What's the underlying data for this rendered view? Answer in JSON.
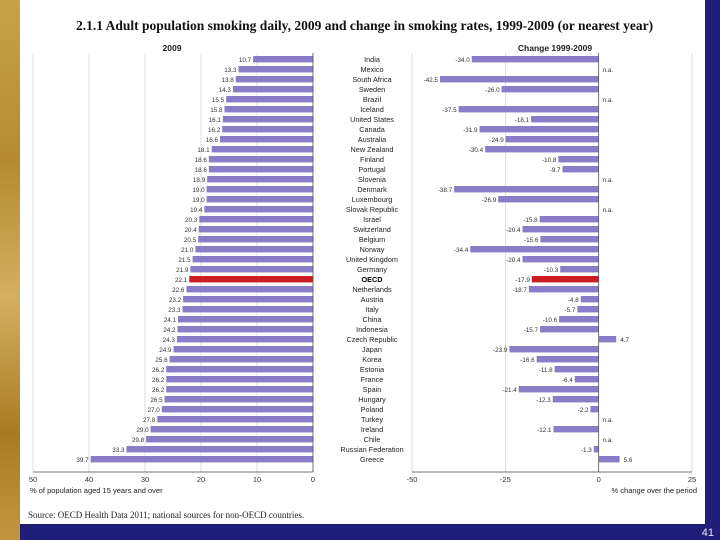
{
  "title": "2.1.1  Adult population smoking daily, 2009 and change in smoking rates, 1999-2009 (or nearest year)",
  "source": "Source: OECD Health Data 2011; national sources for non-OECD countries.",
  "page_number": "41",
  "colors": {
    "bar": "#8a7cc8",
    "highlight": "#cc1e1e",
    "slide_bg": "#ffffff",
    "frame": "#1f1f7a"
  },
  "chart_data": [
    {
      "type": "bar",
      "orientation": "horizontal",
      "title": "2009",
      "xlabel": "% of population aged 15 years and over",
      "xlim": [
        50,
        0
      ],
      "xticks": [
        50,
        40,
        30,
        20,
        10,
        0
      ],
      "xtick_labels": [
        "50",
        "40",
        "30",
        "20",
        "10",
        "0"
      ],
      "highlight": "OECD",
      "categories": [
        "India",
        "Mexico",
        "South Africa",
        "Sweden",
        "Brazil",
        "Iceland",
        "United States",
        "Canada",
        "Australia",
        "New Zealand",
        "Finland",
        "Portugal",
        "Slovenia",
        "Denmark",
        "Luxembourg",
        "Slovak Republic",
        "Israel",
        "Switzerland",
        "Belgium",
        "Norway",
        "United Kingdom",
        "Germany",
        "OECD",
        "Netherlands",
        "Austria",
        "Italy",
        "China",
        "Indonesia",
        "Czech Republic",
        "Japan",
        "Korea",
        "Estonia",
        "France",
        "Spain",
        "Hungary",
        "Poland",
        "Turkey",
        "Ireland",
        "Chile",
        "Russian Federation",
        "Greece"
      ],
      "values": [
        10.7,
        13.3,
        13.8,
        14.3,
        15.5,
        15.8,
        16.1,
        16.2,
        16.6,
        18.1,
        18.6,
        18.6,
        18.9,
        19.0,
        19.0,
        19.4,
        20.3,
        20.4,
        20.5,
        21.0,
        21.5,
        21.9,
        22.1,
        22.6,
        23.2,
        23.3,
        24.1,
        24.2,
        24.3,
        24.9,
        25.6,
        26.2,
        26.2,
        26.2,
        26.5,
        27.0,
        27.8,
        29.0,
        29.8,
        33.3,
        39.7
      ],
      "labels": [
        "10.7",
        "13.3",
        "13.8",
        "14.3",
        "15.5",
        "15.8",
        "16.1",
        "16.2",
        "16.6",
        "18.1",
        "18.6",
        "18.6",
        "18.9",
        "19.0",
        "19.0",
        "19.4",
        "20.3",
        "20.4",
        "20.5",
        "21.0",
        "21.5",
        "21.9",
        "22.1",
        "22.6",
        "23.2",
        "23.3",
        "24.1",
        "24.2",
        "24.3",
        "24.9",
        "25.6",
        "26.2",
        "26.2",
        "26.2",
        "26.5",
        "27.0",
        "27.8",
        "29.0",
        "29.8",
        "33.3",
        "39.7"
      ]
    },
    {
      "type": "bar",
      "orientation": "horizontal",
      "title": "Change 1999-2009",
      "xlabel": "% change over the period",
      "xlim": [
        -50,
        25
      ],
      "xticks": [
        -50,
        -25,
        0,
        25
      ],
      "xtick_labels": [
        "-50",
        "-25",
        "0",
        "25"
      ],
      "highlight": "OECD",
      "values": [
        -34.0,
        null,
        -42.5,
        -26.0,
        null,
        -37.5,
        -18.1,
        -31.9,
        -24.9,
        -30.4,
        -10.8,
        -9.7,
        null,
        -38.7,
        -26.9,
        null,
        -15.8,
        -20.4,
        -15.6,
        -34.4,
        -20.4,
        -10.3,
        -17.9,
        -18.7,
        -4.8,
        -5.7,
        -10.6,
        -15.7,
        4.7,
        -23.9,
        -16.6,
        -11.8,
        -6.4,
        -21.4,
        -12.3,
        -2.2,
        null,
        -12.1,
        null,
        -1.3,
        5.6
      ],
      "labels": [
        "-34.0",
        "n.a.",
        "-42.5",
        "-26.0",
        "n.a.",
        "-37.5",
        "-18.1",
        "-31.9",
        "-24.9",
        "-30.4",
        "-10.8",
        "-9.7",
        "n.a.",
        "-38.7",
        "-26.9",
        "n.a.",
        "-15.8",
        "-20.4",
        "-15.6",
        "-34.4",
        "-20.4",
        "-10.3",
        "-17.9",
        "-18.7",
        "-4.8",
        "-5.7",
        "-10.6",
        "-15.7",
        "4.7",
        "-23.9",
        "-16.6",
        "-11.8",
        "-6.4",
        "-21.4",
        "-12.3",
        "-2.2",
        "n.a.",
        "-12.1",
        "n.a.",
        "-1.3",
        "5.6"
      ]
    }
  ]
}
